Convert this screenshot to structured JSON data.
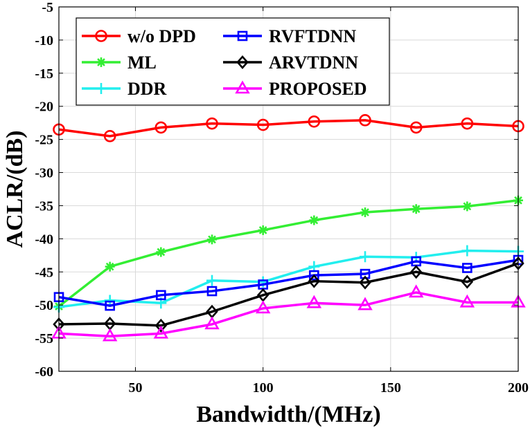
{
  "chart_data": {
    "type": "line",
    "xlabel": "Bandwidth/(MHz)",
    "ylabel": "ACLR/(dB)",
    "xlim": [
      20,
      200
    ],
    "ylim": [
      -60,
      -5
    ],
    "xticks": [
      50,
      100,
      150,
      200
    ],
    "yticks": [
      -60,
      -55,
      -50,
      -45,
      -40,
      -35,
      -30,
      -25,
      -20,
      -15,
      -10,
      -5
    ],
    "grid": true,
    "legend_position": "top-left",
    "x": [
      20,
      40,
      60,
      80,
      100,
      120,
      140,
      160,
      180,
      200
    ],
    "series": [
      {
        "name": "w/o DPD",
        "color": "#ff0000",
        "marker": "circle",
        "values": [
          -23.5,
          -24.5,
          -23.2,
          -22.6,
          -22.8,
          -22.3,
          -22.1,
          -23.2,
          -22.6,
          -23.0
        ]
      },
      {
        "name": "ML",
        "color": "#33ee33",
        "marker": "asterisk",
        "values": [
          -50.2,
          -44.2,
          -42.0,
          -40.1,
          -38.7,
          -37.2,
          -36.0,
          -35.5,
          -35.1,
          -34.2
        ]
      },
      {
        "name": "DDR",
        "color": "#22eeee",
        "marker": "plus",
        "values": [
          -50.3,
          -49.3,
          -49.7,
          -46.3,
          -46.5,
          -44.2,
          -42.7,
          -42.8,
          -41.8,
          -41.9
        ]
      },
      {
        "name": "RVFTDNN",
        "color": "#0000ff",
        "marker": "square",
        "values": [
          -48.8,
          -50.1,
          -48.5,
          -47.9,
          -46.9,
          -45.5,
          -45.3,
          -43.4,
          -44.4,
          -43.2
        ]
      },
      {
        "name": "ARVTDNN",
        "color": "#000000",
        "marker": "diamond",
        "values": [
          -52.9,
          -52.8,
          -53.1,
          -51.0,
          -48.5,
          -46.4,
          -46.6,
          -45.0,
          -46.5,
          -43.7
        ]
      },
      {
        "name": "PROPOSED",
        "color": "#ff00ff",
        "marker": "triangle",
        "values": [
          -54.3,
          -54.7,
          -54.3,
          -52.9,
          -50.5,
          -49.7,
          -50.0,
          -48.1,
          -49.6,
          -49.6
        ]
      }
    ]
  }
}
